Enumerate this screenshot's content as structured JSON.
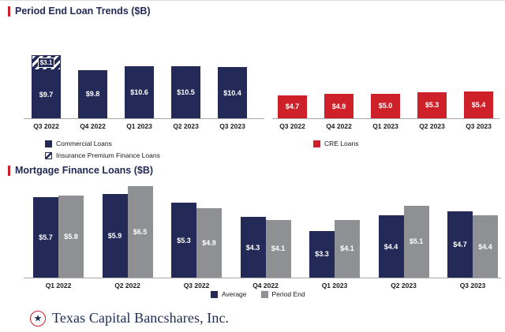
{
  "header": {
    "top_title": "Period End Loan Trends ($B)",
    "bottom_title": "Mortgage Finance Loans ($B)"
  },
  "colors": {
    "navy": "#232a57",
    "red": "#ce2029",
    "gray": "#8e9093",
    "axis": "#a8a8a8",
    "accent_red": "#d0202a",
    "brand_navy": "#1e2a52"
  },
  "legends": {
    "top_left": [
      {
        "label": "Commercial Loans",
        "swatch": "navy"
      },
      {
        "label": "Insurance Premium Finance Loans",
        "swatch": "hatched"
      }
    ],
    "top_right": [
      {
        "label": "CRE Loans",
        "swatch": "red"
      }
    ],
    "bottom": [
      {
        "label": "Average",
        "swatch": "navy"
      },
      {
        "label": "Period End",
        "swatch": "gray"
      }
    ]
  },
  "chart_data": [
    {
      "id": "commercial",
      "type": "bar",
      "stacked": true,
      "title": "Period End Loan Trends ($B) – Commercial",
      "categories": [
        "Q3 2022",
        "Q4 2022",
        "Q1 2023",
        "Q2 2023",
        "Q3 2023"
      ],
      "series": [
        {
          "name": "Commercial Loans",
          "style": "navy",
          "values": [
            9.7,
            9.8,
            10.6,
            10.5,
            10.4
          ],
          "labels": [
            "$9.7",
            "$9.8",
            "$10.6",
            "$10.5",
            "$10.4"
          ]
        },
        {
          "name": "Insurance Premium Finance Loans",
          "style": "hatched",
          "values": [
            3.1,
            null,
            null,
            null,
            null
          ],
          "labels": [
            "$3.1",
            null,
            null,
            null,
            null
          ]
        }
      ],
      "ylim": [
        0,
        14.5
      ],
      "grid": false,
      "legend_position": "bottom-left"
    },
    {
      "id": "cre",
      "type": "bar",
      "stacked": false,
      "title": "Period End Loan Trends ($B) – CRE",
      "categories": [
        "Q3 2022",
        "Q4 2022",
        "Q1 2023",
        "Q2 2023",
        "Q3 2023"
      ],
      "series": [
        {
          "name": "CRE Loans",
          "style": "red",
          "values": [
            4.7,
            4.9,
            5.0,
            5.3,
            5.4
          ],
          "labels": [
            "$4.7",
            "$4.9",
            "$5.0",
            "$5.3",
            "$5.4"
          ]
        }
      ],
      "ylim": [
        0,
        14.5
      ],
      "grid": false,
      "legend_position": "bottom"
    },
    {
      "id": "mortgage",
      "type": "bar",
      "grouped": true,
      "title": "Mortgage Finance Loans ($B)",
      "categories": [
        "Q1 2022",
        "Q2 2022",
        "Q3 2022",
        "Q4 2022",
        "Q1 2023",
        "Q2 2023",
        "Q3 2023"
      ],
      "series": [
        {
          "name": "Average",
          "style": "navy",
          "values": [
            5.7,
            5.9,
            5.3,
            4.3,
            3.3,
            4.4,
            4.7
          ],
          "labels": [
            "$5.7",
            "$5.9",
            "$5.3",
            "$4.3",
            "$3.3",
            "$4.4",
            "$4.7"
          ]
        },
        {
          "name": "Period End",
          "style": "gray",
          "values": [
            5.8,
            6.5,
            4.9,
            4.1,
            4.1,
            5.1,
            4.4
          ],
          "labels": [
            "$5.8",
            "$6.5",
            "$4.9",
            "$4.1",
            "$4.1",
            "$5.1",
            "$4.4"
          ]
        }
      ],
      "ylim": [
        0,
        6.8
      ],
      "grid": false,
      "legend_position": "bottom-center"
    }
  ],
  "footer": {
    "brand": "Texas Capital Bancshares, Inc.",
    "star": "★"
  }
}
